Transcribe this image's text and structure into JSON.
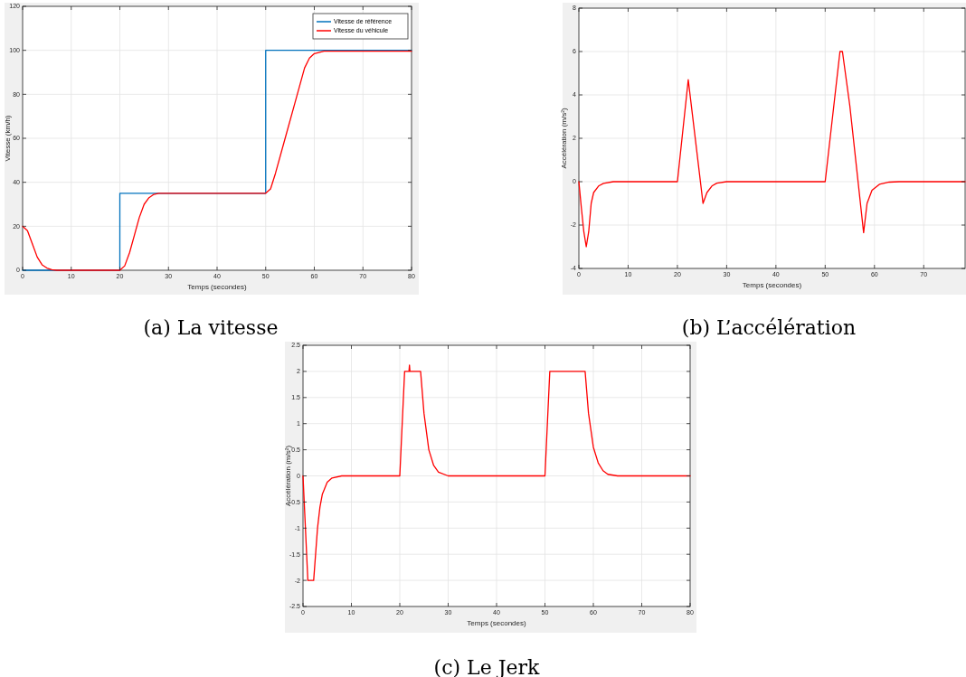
{
  "chart_data": [
    {
      "type": "line",
      "xlabel": "Temps (secondes)",
      "ylabel": "Vitesse (km/h)",
      "annotations": [
        "(a) La vitesse"
      ],
      "xlim": [
        0,
        80
      ],
      "xticks": [
        0,
        10,
        20,
        30,
        40,
        50,
        60,
        70,
        80
      ],
      "ylim": [
        0,
        120
      ],
      "yticks": [
        0,
        20,
        40,
        60,
        80,
        100,
        120
      ],
      "grid": true,
      "legend": "top right",
      "series": [
        {
          "name": "Vitesse de référence",
          "color": "#0072bd",
          "x": [
            0,
            20,
            20,
            50,
            50,
            80
          ],
          "values": [
            0,
            0,
            35,
            35,
            100,
            100
          ]
        },
        {
          "name": "Vitesse du véhicule",
          "color": "#ff0000",
          "x": [
            0,
            1,
            2,
            3,
            4,
            5,
            6,
            7,
            20,
            21,
            22,
            23,
            24,
            25,
            26,
            27,
            28,
            50,
            51,
            52,
            54,
            56,
            58,
            59,
            60,
            62,
            80
          ],
          "values": [
            20,
            18,
            12,
            6,
            2.5,
            1,
            0.3,
            0,
            0,
            2,
            8,
            16,
            24,
            30,
            33,
            34.5,
            35,
            35,
            37,
            44,
            60,
            76,
            92,
            96.5,
            98.5,
            99.6,
            99.6
          ]
        }
      ]
    },
    {
      "type": "line",
      "xlabel": "Temps (secondes)",
      "ylabel": "Accélération (m/s²)",
      "annotations": [
        "(b) L’accélération"
      ],
      "xlim": [
        0,
        78.4
      ],
      "xticks": [
        0,
        10,
        20,
        30,
        40,
        50,
        60,
        70
      ],
      "ylim": [
        -4,
        8
      ],
      "yticks": [
        -4,
        -2,
        0,
        2,
        4,
        6,
        8
      ],
      "grid": true,
      "series": [
        {
          "color": "#ff0000",
          "x": [
            0,
            0.5,
            1,
            1.5,
            2,
            2.5,
            3,
            4,
            5,
            7,
            20,
            22.2,
            25.2,
            26,
            27,
            28,
            30,
            50,
            53,
            53.5,
            55,
            57.8,
            58.5,
            59.5,
            61,
            63,
            65,
            78.4
          ],
          "values": [
            0,
            -1.2,
            -2.3,
            -3,
            -2.3,
            -1,
            -0.5,
            -0.2,
            -0.08,
            0,
            0,
            4.7,
            -1,
            -0.5,
            -0.2,
            -0.07,
            0,
            0,
            6,
            6,
            3.5,
            -2.35,
            -1,
            -0.4,
            -0.12,
            -0.02,
            0,
            0
          ]
        }
      ]
    },
    {
      "type": "line",
      "xlabel": "Temps (secondes)",
      "ylabel": "Accélération (m/s²)",
      "annotations": [
        "(c) Le Jerk"
      ],
      "xlim": [
        0,
        80
      ],
      "xticks": [
        0,
        10,
        20,
        30,
        40,
        50,
        60,
        70,
        80
      ],
      "ylim": [
        -2.5,
        2.5
      ],
      "yticks": [
        -2.5,
        -2,
        -1.5,
        -1,
        -0.5,
        0,
        0.5,
        1,
        1.5,
        2,
        2.5
      ],
      "grid": true,
      "series": [
        {
          "color": "#ff0000",
          "x": [
            0,
            0.5,
            1,
            2.2,
            3,
            3.5,
            4,
            5,
            6,
            8,
            20,
            21,
            21.9,
            22,
            22.1,
            24.3,
            25,
            26,
            27,
            28,
            30,
            50,
            51,
            58.3,
            59,
            60,
            61,
            62,
            63,
            65,
            80
          ],
          "values": [
            0,
            -1,
            -2,
            -2,
            -1,
            -0.6,
            -0.35,
            -0.12,
            -0.04,
            0,
            0,
            2,
            2,
            2.12,
            2,
            2,
            1.2,
            0.5,
            0.2,
            0.07,
            0,
            0,
            2,
            2,
            1.2,
            0.55,
            0.25,
            0.1,
            0.03,
            0,
            0
          ]
        }
      ]
    }
  ]
}
